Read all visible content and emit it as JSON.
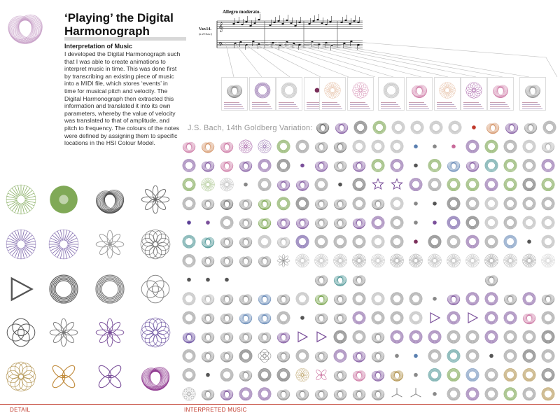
{
  "header": {
    "title": "‘Playing’ the Digital Harmonograph",
    "section_heading": "Interpretation of Music",
    "body_text": "I developed the Digital Harmonograph such that I was able to create animations to interpret music in time. This was done first by transcribing an existing piece of music into a MIDI file, which stores ‘events’ in time for musical pitch and velocity. The Digital Harmonograph then extracted this information and translated it into its own parameters, whereby the value of velocity was translated to that of amplitude, and pitch to frequency. The colours of the notes were defined by assigning them to specific locations in the HSI Colour Model."
  },
  "score": {
    "tempo": "Allegro moderato.",
    "variation_label": "Var.14.",
    "clavier_label": "(a 2 Clav.)"
  },
  "piece_title": "J.S. Bach, 14th Goldberg Variation:",
  "footer": {
    "detail_label": "DETAIL",
    "music_label": "INTERPRETED MUSIC"
  },
  "colors": {
    "accent": "#c0392b",
    "green": "#6a9a3a",
    "purple": "#5b3f96",
    "pink": "#c86a9a",
    "orange": "#d08a5a",
    "blue": "#5a7fb0",
    "teal": "#3a8a8a",
    "gold": "#a8863a",
    "gray": "#555555",
    "light_gray": "#aaaaaa"
  },
  "detail_grid": {
    "rows": [
      [
        {
          "shape": "burst",
          "color": "#6a9a3a"
        },
        {
          "shape": "solid",
          "color": "#6a9a3a"
        },
        {
          "shape": "spiro",
          "color": "#444444"
        },
        {
          "shape": "flower",
          "color": "#666666"
        }
      ],
      [
        {
          "shape": "burst",
          "color": "#5b3f96"
        },
        {
          "shape": "burst",
          "color": "#5b3f96"
        },
        {
          "shape": "flower",
          "color": "#999999"
        },
        {
          "shape": "gear",
          "color": "#555555"
        }
      ],
      [
        {
          "shape": "triangle",
          "color": "#555555"
        },
        {
          "shape": "ring",
          "color": "#333333"
        },
        {
          "shape": "ring",
          "color": "#555555"
        },
        {
          "shape": "loops",
          "color": "#888888"
        }
      ],
      [
        {
          "shape": "loops",
          "color": "#555555"
        },
        {
          "shape": "flower",
          "color": "#777777"
        },
        {
          "shape": "flower",
          "color": "#7a4f9a"
        },
        {
          "shape": "gear",
          "color": "#5b3f96"
        }
      ],
      [
        {
          "shape": "gear",
          "color": "#a8863a"
        },
        {
          "shape": "clover",
          "color": "#c08a3a"
        },
        {
          "shape": "clover",
          "color": "#7a4f9a"
        },
        {
          "shape": "spiro",
          "color": "#8a2f8a"
        }
      ]
    ]
  },
  "thumbnails": [
    {
      "shape": "spiro",
      "color": "#777777"
    },
    {
      "shape": "ring",
      "color": "#7a4f9a"
    },
    {
      "shape": "ring",
      "color": "#aaaaaa"
    },
    {
      "shape": "dot",
      "color": "#7a2f5a"
    },
    {
      "shape": "burst",
      "color": "#d08a5a"
    },
    {
      "shape": "gear",
      "color": "#c86a9a"
    },
    {
      "shape": "ring",
      "color": "#aaaaaa"
    },
    {
      "shape": "spiro",
      "color": "#c86a9a"
    },
    {
      "shape": "burst",
      "color": "#d08a5a"
    },
    {
      "shape": "gear",
      "color": "#8a2f8a"
    },
    {
      "shape": "spiro",
      "color": "#c86a9a"
    },
    {
      "shape": "spiro",
      "color": "#888888"
    }
  ],
  "music_grid": {
    "rows": [
      [
        "",
        "",
        "",
        "",
        "",
        "",
        "",
        "",
        "",
        "",
        "",
        "",
        "",
        "",
        "",
        "",
        "",
        "",
        "",
        "",
        ""
      ],
      [
        "spiro:#c86a9a",
        "spiro:#d08a5a",
        "spiro:#c86a9a",
        "gear:#8a2f8a",
        "gear:#7a4f9a",
        "ring:#6a9a3a",
        "ring:#888888",
        "spiro:#888888",
        "spiro:#777777",
        "ring:#aaaaaa",
        "ring:#aaaaaa",
        "ring:#aaaaaa",
        "dot:#5a7fb0",
        "dot:#888888",
        "dot:#c86a9a",
        "ring:#7a4f9a",
        "ring:#6a9a3a",
        "ring:#888888",
        "ring:#aaaaaa",
        "spiro:#aaaaaa"
      ],
      [
        "ring:#7a4f9a",
        "spiro:#7a4f9a",
        "spiro:#c86a9a",
        "spiro:#7a4f9a",
        "ring:#7a4f9a",
        "ring:#555555",
        "dot:#7a4f9a",
        "spiro:#7a4f9a",
        "spiro:#888888",
        "spiro:#7a4f9a",
        "ring:#6a9a3a",
        "ring:#7a4f9a",
        "dot:#555555",
        "ring:#6a9a3a",
        "spiro:#5a7fb0",
        "spiro:#7a4f9a",
        "ring:#3a8a8a",
        "ring:#6a9a3a",
        "ring:#888888",
        "ring:#7a4f9a"
      ],
      [
        "ring:#6a9a3a",
        "burst:#6a9a3a",
        "burst:#888888",
        "dot:#888888",
        "ring:#888888",
        "spiro:#7a4f9a",
        "spiro:#7a4f9a",
        "ring:#888888",
        "dot:#555555",
        "ring:#555555",
        "star:#7a4f9a",
        "star:#7a4f9a",
        "ring:#7a4f9a",
        "ring:#888888",
        "ring:#6a9a3a",
        "ring:#6a9a3a",
        "ring:#7a4f9a",
        "ring:#6a9a3a",
        "ring:#555555",
        "ring:#6a9a3a"
      ],
      [
        "ring:#888888",
        "spiro:#888888",
        "spiro:#666666",
        "spiro:#888888",
        "spiro:#6a9a3a",
        "ring:#6a9a3a",
        "ring:#555555",
        "spiro:#888888",
        "spiro:#888888",
        "ring:#888888",
        "spiro:#888888",
        "ring:#aaaaaa",
        "dot:#888888",
        "dot:#555555",
        "ring:#555555",
        "ring:#888888",
        "ring:#aaaaaa",
        "ring:#888888",
        "ring:#888888",
        "ring:#888888"
      ],
      [
        "dot:#5b3f96",
        "dot:#7a4f9a",
        "ring:#888888",
        "spiro:#888888",
        "spiro:#6a9a3a",
        "spiro:#7a4f9a",
        "spiro:#7a4f9a",
        "spiro:#888888",
        "spiro:#888888",
        "spiro:#7a4f9a",
        "ring:#7a4f9a",
        "ring:#888888",
        "dot:#888888",
        "dot:#7a4f9a",
        "ring:#5b3f96",
        "ring:#555555",
        "ring:#aaaaaa",
        "ring:#888888",
        "ring:#aaaaaa",
        "ring:#aaaaaa"
      ],
      [
        "ring:#3a8a8a",
        "spiro:#3a8a8a",
        "spiro:#888888",
        "spiro:#888888",
        "ring:#aaaaaa",
        "spiro:#aaaaaa",
        "ring:#5b3f96",
        "ring:#888888",
        "ring:#888888",
        "ring:#888888",
        "ring:#aaaaaa",
        "ring:#888888",
        "dot:#7a2f5a",
        "ring:#555555",
        "ring:#888888",
        "ring:#7a4f9a",
        "ring:#888888",
        "ring:#5a7fb0",
        "dot:#555555",
        "ring:#aaaaaa"
      ],
      [
        "ring:#888888",
        "spiro:#888888",
        "spiro:#888888",
        "spiro:#888888",
        "spiro:#888888",
        "flower:#888888",
        "burst:#888888",
        "burst:#888888",
        "burst:#777777",
        "burst:#555555",
        "burst:#888888",
        "burst:#555555",
        "burst:#555555",
        "burst:#777777",
        "burst:#777777",
        "burst:#888888",
        "burst:#555555",
        "burst:#777777",
        "burst:#555555",
        "burst:#aaaaaa"
      ],
      [
        "dot:#555555",
        "dot:#555555",
        "dot:#555555",
        "",
        "",
        "",
        "",
        "spiro:#888888",
        "spiro:#3a8a8a",
        "spiro:#888888",
        "",
        "",
        "",
        "",
        "",
        "",
        "spiro:#888888",
        "",
        "",
        ""
      ],
      [
        "ring:#aaaaaa",
        "spiro:#aaaaaa",
        "spiro:#888888",
        "spiro:#888888",
        "spiro:#5a7fb0",
        "spiro:#888888",
        "ring:#aaaaaa",
        "spiro:#6a9a3a",
        "spiro:#888888",
        "ring:#888888",
        "ring:#aaaaaa",
        "ring:#888888",
        "ring:#888888",
        "dot:#888888",
        "spiro:#7a4f9a",
        "ring:#7a4f9a",
        "ring:#7a4f9a",
        "spiro:#888888",
        "ring:#7a4f9a",
        "spiro:#888888"
      ],
      [
        "ring:#888888",
        "spiro:#888888",
        "spiro:#888888",
        "spiro:#5a7fb0",
        "spiro:#5a7fb0",
        "ring:#888888",
        "dot:#555555",
        "spiro:#888888",
        "spiro:#888888",
        "ring:#7a4f9a",
        "ring:#888888",
        "ring:#888888",
        "ring:#aaaaaa",
        "triangle:#7a4f9a",
        "ring:#7a4f9a",
        "triangle:#7a4f9a",
        "ring:#7a4f9a",
        "ring:#7a4f9a",
        "spiro:#c86a9a",
        "ring:#888888"
      ],
      [
        "spiro:#5b3f96",
        "spiro:#888888",
        "spiro:#888888",
        "spiro:#888888",
        "spiro:#888888",
        "spiro:#7a4f9a",
        "triangle:#7a4f9a",
        "triangle:#7a4f9a",
        "ring:#555555",
        "ring:#888888",
        "spiro:#888888",
        "ring:#7a4f9a",
        "ring:#7a4f9a",
        "ring:#7a4f9a",
        "ring:#888888",
        "ring:#888888",
        "ring:#7a4f9a",
        "ring:#888888",
        "ring:#888888",
        "ring:#555555"
      ],
      [
        "ring:#888888",
        "spiro:#888888",
        "spiro:#888888",
        "ring:#555555",
        "loops:#888888",
        "spiro:#888888",
        "ring:#888888",
        "spiro:#888888",
        "ring:#7a4f9a",
        "spiro:#7a4f9a",
        "spiro:#888888",
        "dot:#888888",
        "dot:#5a7fb0",
        "ring:#888888",
        "ring:#3a8a8a",
        "ring:#888888",
        "dot:#555555",
        "ring:#888888",
        "ring:#555555",
        "ring:#888888"
      ],
      [
        "ring:#888888",
        "dot:#555555",
        "ring:#888888",
        "spiro:#888888",
        "ring:#555555",
        "ring:#555555",
        "gear:#a8863a",
        "clover:#c86a9a",
        "spiro:#888888",
        "spiro:#c86a9a",
        "spiro:#7a4f9a",
        "spiro:#a8863a",
        "dot:#888888",
        "ring:#3a8a8a",
        "ring:#6a9a3a",
        "ring:#5a7fb0",
        "ring:#888888",
        "ring:#a8863a",
        "ring:#a8863a",
        "ring:#555555"
      ],
      [
        "gear:#888888",
        "spiro:#888888",
        "spiro:#7a4f9a",
        "ring:#7a4f9a",
        "ring:#7a4f9a",
        "spiro:#888888",
        "spiro:#888888",
        "spiro:#888888",
        "spiro:#888888",
        "spiro:#888888",
        "spiro:#888888",
        "tri:#888888",
        "tri:#888888",
        "dot:#888888",
        "ring:#888888",
        "ring:#7a4f9a",
        "ring:#888888",
        "ring:#6a9a3a",
        "ring:#888888",
        "ring:#a8863a"
      ]
    ],
    "first_row_right": [
      "spiro:#555555",
      "spiro:#7a4f9a",
      "ring:#555555",
      "ring:#6a9a3a",
      "ring:#aaaaaa",
      "ring:#aaaaaa",
      "ring:#aaaaaa",
      "ring:#aaaaaa",
      "dot:#c0392b",
      "spiro:#d08a5a",
      "spiro:#7a4f9a",
      "spiro:#888888",
      "ring:#888888",
      "ring:#888888"
    ]
  }
}
